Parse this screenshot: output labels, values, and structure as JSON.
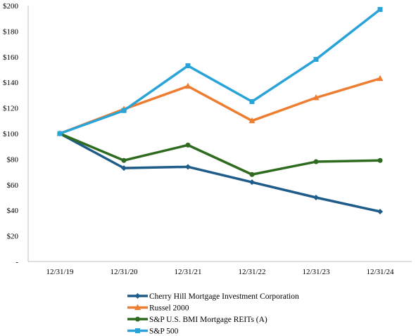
{
  "chart_data": {
    "type": "line",
    "x": [
      "12/31/19",
      "12/31/20",
      "12/31/21",
      "12/31/22",
      "12/31/23",
      "12/31/24"
    ],
    "y_ticks": [
      "-",
      "$20",
      "$40",
      "$60",
      "$80",
      "$100",
      "$120",
      "$140",
      "$160",
      "$180",
      "$200"
    ],
    "ylim": [
      0,
      200
    ],
    "grid": false,
    "legend_position": "bottom",
    "series": [
      {
        "name": "Cherry Hill Mortgage Investment Corporation",
        "color": "#1f5c8a",
        "marker": "diamond",
        "values": [
          100,
          73,
          74,
          62,
          50,
          39
        ]
      },
      {
        "name": "Russel 2000",
        "color": "#ed7d31",
        "marker": "triangle",
        "values": [
          100,
          119,
          137,
          110,
          128,
          143
        ]
      },
      {
        "name": "S&P U.S. BMI Mortgage REITs (A)",
        "color": "#2e6b1f",
        "marker": "circle",
        "values": [
          100,
          79,
          91,
          68,
          78,
          79
        ]
      },
      {
        "name": "S&P 500",
        "color": "#2aa3d8",
        "marker": "square",
        "values": [
          100,
          118,
          153,
          125,
          158,
          197
        ]
      }
    ]
  }
}
